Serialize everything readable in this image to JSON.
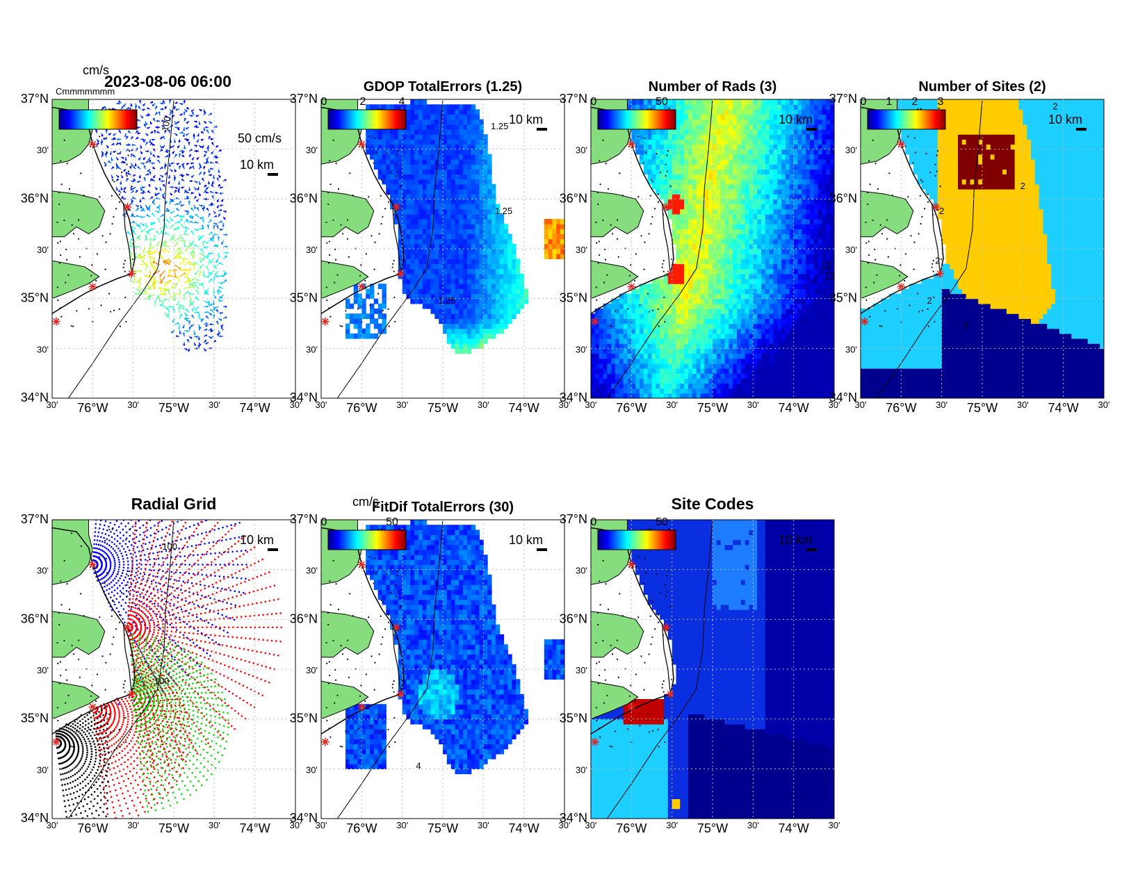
{
  "figure": {
    "timestamp": "2023-08-06 06:00",
    "axes_x_ticks": [
      "30'",
      "76°W",
      "30'",
      "75°W",
      "30'",
      "74°W",
      "30'"
    ],
    "axes_y_ticks": [
      "37°N",
      "30'",
      "36°N",
      "30'",
      "35°N",
      "30'",
      "34°N"
    ],
    "scale_label": "10 km",
    "colors": {
      "land": "#86dd7e",
      "site_marker": "#e8211b",
      "grid": "#bdbdbd",
      "coast": "#000000"
    },
    "extent": {
      "lon": [
        -76.5,
        -73.5
      ],
      "lat": [
        34.0,
        37.0
      ]
    },
    "sites": [
      {
        "lon": -76.0,
        "lat": 36.55
      },
      {
        "lon": -75.57,
        "lat": 35.92
      },
      {
        "lon": -75.52,
        "lat": 35.25
      },
      {
        "lon": -76.0,
        "lat": 35.12
      },
      {
        "lon": -76.45,
        "lat": 34.77
      }
    ]
  },
  "chart_data": [
    {
      "type": "vector-field",
      "title": "2023-08-06 06:00",
      "colorbar_unit": "cm/s",
      "colorbar_overlap_text": "Cmmmmmmm",
      "reference_vector_label": "50 cm/s",
      "contour_label": "100",
      "xlim": [
        -76.5,
        -73.5
      ],
      "ylim": [
        34.0,
        37.0
      ]
    },
    {
      "type": "heatmap",
      "title": "GDOP TotalErrors (1.25)",
      "colorbar_ticks": [
        "0",
        "2",
        "4"
      ],
      "contour_labels": [
        "1.25",
        "1.25",
        "1.25"
      ],
      "xlim": [
        -76.5,
        -73.5
      ],
      "ylim": [
        34.0,
        37.0
      ]
    },
    {
      "type": "heatmap",
      "title": "Number of Rads (3)",
      "colorbar_ticks": [
        "0",
        "50"
      ],
      "contour_labels": [
        "12",
        "12"
      ],
      "xlim": [
        -76.5,
        -73.5
      ],
      "ylim": [
        34.0,
        37.0
      ]
    },
    {
      "type": "heatmap",
      "title": "Number of Sites (2)",
      "colorbar_ticks": [
        "0",
        "1",
        "2",
        "3"
      ],
      "contour_labels": [
        "2",
        "2",
        "2",
        "2",
        "2",
        "2"
      ],
      "xlim": [
        -76.5,
        -73.5
      ],
      "ylim": [
        34.0,
        37.0
      ]
    },
    {
      "type": "scatter",
      "title": "Radial Grid",
      "contour_labels": [
        "100",
        "100"
      ],
      "series": [
        {
          "color": "#0000ff",
          "site_lon": -76.0,
          "site_lat": 36.55
        },
        {
          "color": "#ff0000",
          "site_lon": -75.57,
          "site_lat": 35.92
        },
        {
          "color": "#00dd00",
          "site_lon": -75.52,
          "site_lat": 35.25
        },
        {
          "color": "#ff0000",
          "site_lon": -76.0,
          "site_lat": 35.12
        },
        {
          "color": "#000000",
          "site_lon": -76.45,
          "site_lat": 34.77
        }
      ],
      "xlim": [
        -76.5,
        -73.5
      ],
      "ylim": [
        34.0,
        37.0
      ]
    },
    {
      "type": "heatmap",
      "title": "FitDif TotalErrors (30)",
      "colorbar_unit": "cm/s",
      "colorbar_ticks": [
        "0",
        "50"
      ],
      "contour_labels": [
        "4"
      ],
      "xlim": [
        -76.5,
        -73.5
      ],
      "ylim": [
        34.0,
        37.0
      ]
    },
    {
      "type": "heatmap",
      "title": "Site Codes",
      "colorbar_ticks": [
        "0",
        "50"
      ],
      "xlim": [
        -76.5,
        -73.5
      ],
      "ylim": [
        34.0,
        37.0
      ]
    }
  ]
}
